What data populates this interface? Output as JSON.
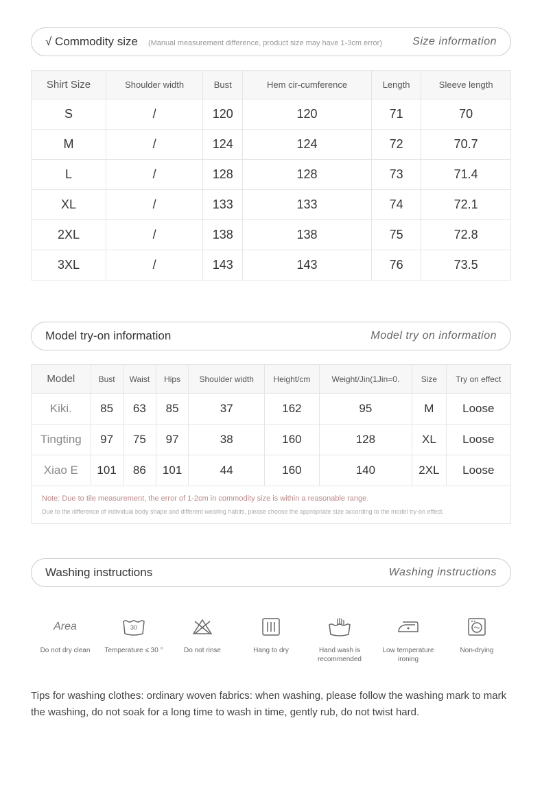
{
  "size_header": {
    "title": "√ Commodity size",
    "subtitle": "(Manual measurement difference, product size may have 1-3cm error)",
    "right": "Size information"
  },
  "shirt_table": {
    "headers": [
      "Shirt Size",
      "Shoulder width",
      "Bust",
      "Hem cir-cumference",
      "Length",
      "Sleeve length"
    ],
    "rows": [
      [
        "S",
        "/",
        "120",
        "120",
        "71",
        "70"
      ],
      [
        "M",
        "/",
        "124",
        "124",
        "72",
        "70.7"
      ],
      [
        "L",
        "/",
        "128",
        "128",
        "73",
        "71.4"
      ],
      [
        "XL",
        "/",
        "133",
        "133",
        "74",
        "72.1"
      ],
      [
        "2XL",
        "/",
        "138",
        "138",
        "75",
        "72.8"
      ],
      [
        "3XL",
        "/",
        "143",
        "143",
        "76",
        "73.5"
      ]
    ]
  },
  "model_header": {
    "title": "Model try-on information",
    "right": "Model try on information"
  },
  "model_table": {
    "headers": [
      "Model",
      "Bust",
      "Waist",
      "Hips",
      "Shoulder width",
      "Height/cm",
      "Weight/Jin(1Jin=0.",
      "Size",
      "Try on effect"
    ],
    "rows": [
      [
        "Kiki.",
        "85",
        "63",
        "85",
        "37",
        "162",
        "95",
        "M",
        "Loose"
      ],
      [
        "Tingting",
        "97",
        "75",
        "97",
        "38",
        "160",
        "128",
        "XL",
        "Loose"
      ],
      [
        "Xiao E",
        "101",
        "86",
        "101",
        "44",
        "160",
        "140",
        "2XL",
        "Loose"
      ]
    ]
  },
  "notes": {
    "note1": "Note: Due to tile measurement, the error of 1-2cm in commodity size is within a reasonable range.",
    "note2": "Due to the difference of individual body shape and different wearing habits, please choose the appropriate size according to the model try-on effect."
  },
  "washing_header": {
    "title": "Washing instructions",
    "right": "Washing instructions"
  },
  "washing": [
    {
      "label": "Do not dry clean"
    },
    {
      "label": "Temperature ≤ 30 °"
    },
    {
      "label": "Do not rinse"
    },
    {
      "label": "Hang to dry"
    },
    {
      "label": "Hand wash is recommended"
    },
    {
      "label": "Low temperature ironing"
    },
    {
      "label": "Non-drying"
    }
  ],
  "tips": "Tips for washing clothes: ordinary woven fabrics: when washing, please follow the washing mark to mark the washing, do not soak for a long time to wash in time, gently rub, do not twist hard."
}
